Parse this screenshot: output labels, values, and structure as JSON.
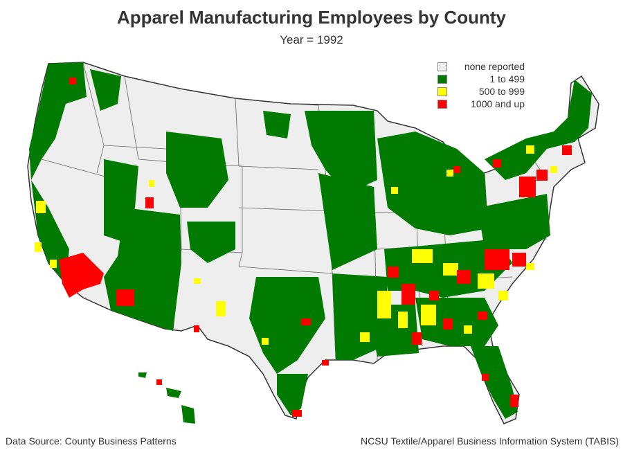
{
  "title": "Apparel Manufacturing Employees by County",
  "subtitle": "Year = 1992",
  "legend": [
    {
      "label": "none reported",
      "color": "#eeeeee"
    },
    {
      "label": "1 to 499",
      "color": "#007a00"
    },
    {
      "label": "500 to 999",
      "color": "#ffff00"
    },
    {
      "label": "1000 and up",
      "color": "#ff0000"
    }
  ],
  "footer": {
    "source": "Data Source: County Business Patterns",
    "credit": "NCSU Textile/Apparel Business Information System (TABIS)"
  },
  "colors": {
    "none": "#eeeeee",
    "low": "#007a00",
    "mid": "#ffff00",
    "high": "#ff0000",
    "county_border": "#555555"
  }
}
